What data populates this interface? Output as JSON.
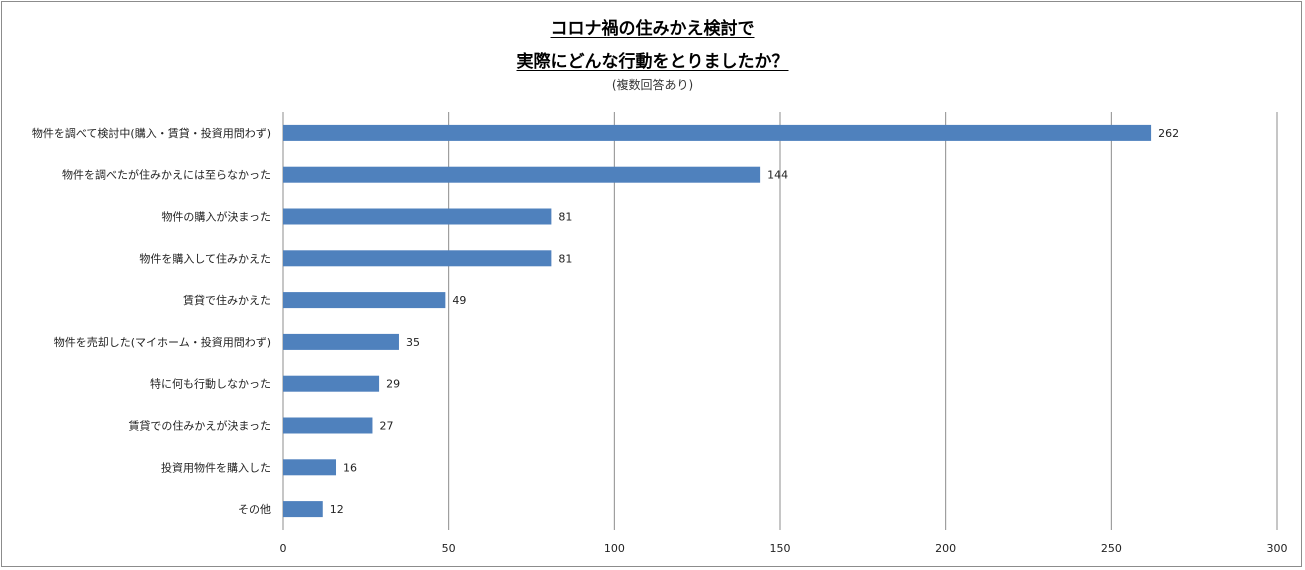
{
  "chart_data": {
    "type": "bar",
    "orientation": "horizontal",
    "title_line1": "コロナ禍の住みかえ検討で",
    "title_line2": "実際にどんな行動をとりましたか？",
    "subtitle": "(複数回答あり)",
    "categories": [
      "物件を調べて検討中(購入・賃貸・投資用問わず)",
      "物件を調べたが住みかえには至らなかった",
      "物件の購入が決まった",
      "物件を購入して住みかえた",
      "賃貸で住みかえた",
      "物件を売却した(マイホーム・投資用問わず)",
      "特に何も行動しなかった",
      "賃貸での住みかえが決まった",
      "投資用物件を購入した",
      "その他"
    ],
    "values": [
      262,
      144,
      81,
      81,
      49,
      35,
      29,
      27,
      16,
      12
    ],
    "xlim": [
      0,
      300
    ],
    "xticks": [
      0,
      50,
      100,
      150,
      200,
      250,
      300
    ],
    "grid": true,
    "bar_color": "#4f81bd",
    "grid_color": "#8c8c8c"
  }
}
